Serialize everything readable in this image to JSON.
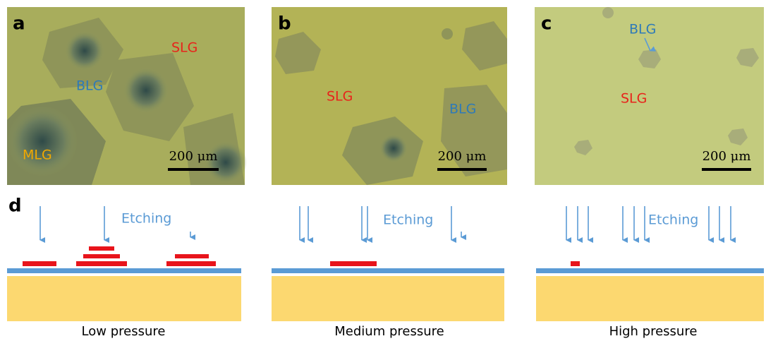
{
  "panels": [
    {
      "label": "a",
      "annotations": [
        {
          "text": "SLG"
        },
        {
          "text": "BLG"
        },
        {
          "text": "MLG"
        }
      ],
      "scale_bar": "200 μm"
    },
    {
      "label": "b",
      "annotations": [
        {
          "text": "SLG"
        },
        {
          "text": "BLG"
        }
      ],
      "scale_bar": "200 μm"
    },
    {
      "label": "c",
      "annotations": [
        {
          "text": "BLG"
        },
        {
          "text": "SLG"
        }
      ],
      "scale_bar": "200 μm"
    }
  ],
  "schematic": {
    "label": "d",
    "diagrams": [
      {
        "etching": "Etching",
        "caption": "Low pressure"
      },
      {
        "etching": "Etching",
        "caption": "Medium pressure"
      },
      {
        "etching": "Etching",
        "caption": "High pressure"
      }
    ]
  }
}
